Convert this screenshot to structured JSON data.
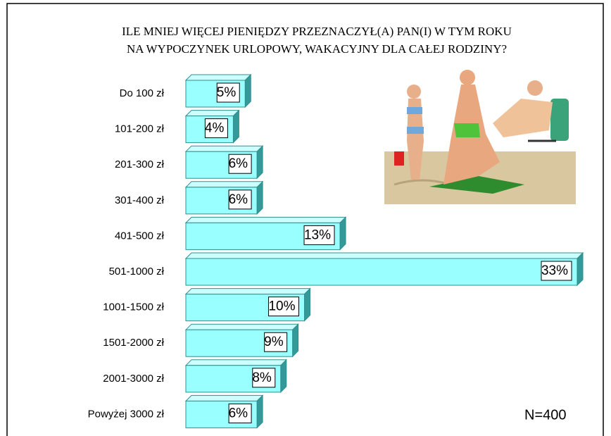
{
  "chart_data": {
    "type": "bar",
    "title": [
      "ILE MNIEJ WIĘCEJ PIENIĘDZY PRZEZNACZYŁ(A) PAN(I) W TYM ROKU",
      "NA WYPOCZYNEK URLOPOWY, WAKACYJNY DLA CAŁEJ RODZINY?"
    ],
    "categories": [
      "Do 100 zł",
      "101-200 zł",
      "201-300 zł",
      "301-400 zł",
      "401-500 zł",
      "501-1000 zł",
      "1001-1500 zł",
      "1501-2000 zł",
      "2001-3000 zł",
      "Powyżej 3000 zł"
    ],
    "values": [
      5,
      4,
      6,
      6,
      13,
      33,
      10,
      9,
      8,
      6
    ],
    "value_labels": [
      "5%",
      "4%",
      "6%",
      "6%",
      "13%",
      "33%",
      "10%",
      "9%",
      "8%",
      "6%"
    ],
    "color": "#99ffff",
    "annotation": "N=400"
  }
}
